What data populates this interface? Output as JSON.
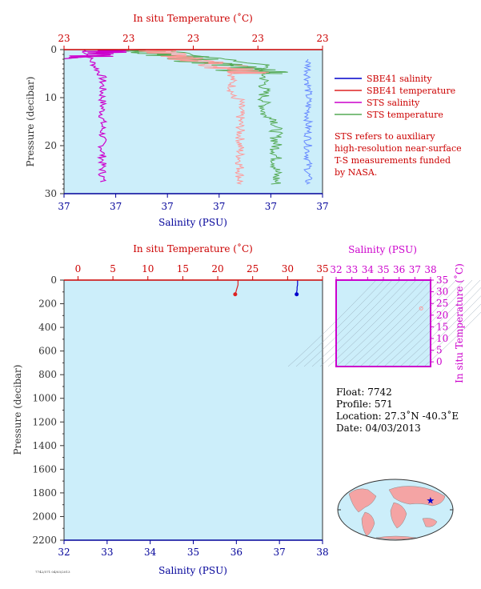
{
  "colors": {
    "plot_bg": "#cceefa",
    "temperature_axis": "#cc0000",
    "salinity_axis": "#000099",
    "pressure_axis": "#333333",
    "sbe41_salinity": "#0000cc",
    "sbe41_temperature": "#dd2222",
    "sts_salinity": "#cc00cc",
    "sts_temperature": "#55aa55",
    "sts_temperature_light": "#ff9999",
    "sbe41_salinity_light": "#6688ff",
    "ts_axis": "#cc00cc",
    "map_land": "#f4a4a4",
    "map_ocean": "#cceefa"
  },
  "chart_data": [
    {
      "id": "top-profile",
      "type": "line",
      "top_axis_title": "In situ Temperature (˚C)",
      "top_tick_labels": [
        "23",
        "23",
        "23",
        "23",
        "23"
      ],
      "bottom_axis_title": "Salinity (PSU)",
      "bottom_tick_labels": [
        "37",
        "37",
        "37",
        "37",
        "37",
        "37"
      ],
      "y_axis_title": "Pressure (decibar)",
      "y_tick_labels": [
        "0",
        "10",
        "20",
        "30"
      ],
      "ylim": [
        0,
        30
      ],
      "y_inverted": true,
      "grid": false,
      "legend_position": "right",
      "legend": [
        "SBE41 salinity",
        "SBE41 temperature",
        "STS salinity",
        "STS temperature"
      ],
      "note_lines": [
        "STS refers to auxiliary",
        "high-resolution near-surface",
        "T-S measurements funded",
        "by NASA."
      ]
    },
    {
      "id": "bottom-profile",
      "type": "line",
      "top_axis_title": "In situ Temperature (˚C)",
      "top_ticks": [
        0,
        5,
        10,
        15,
        20,
        25,
        30,
        35
      ],
      "xlim_temperature": [
        -2,
        35
      ],
      "bottom_axis_title": "Salinity (PSU)",
      "bottom_ticks": [
        32,
        33,
        34,
        35,
        36,
        37,
        38
      ],
      "xlim_salinity": [
        32,
        38
      ],
      "y_axis_title": "Pressure (decibar)",
      "y_ticks": [
        0,
        200,
        400,
        600,
        800,
        1000,
        1200,
        1400,
        1600,
        1800,
        2000,
        2200
      ],
      "ylim": [
        0,
        2200
      ],
      "y_inverted": true,
      "grid": false,
      "series": [
        {
          "name": "SBE41 temperature",
          "pressure": [
            0,
            5,
            10,
            20,
            40,
            60,
            80,
            100,
            120
          ],
          "values": [
            22.9,
            22.9,
            22.9,
            22.9,
            22.9,
            22.8,
            22.7,
            22.6,
            22.5
          ]
        },
        {
          "name": "SBE41 salinity",
          "pressure": [
            0,
            5,
            10,
            20,
            40,
            60,
            80,
            100,
            120
          ],
          "values": [
            37.42,
            37.42,
            37.42,
            37.42,
            37.42,
            37.41,
            37.41,
            37.4,
            37.4
          ]
        }
      ]
    },
    {
      "id": "ts-diagram",
      "type": "scatter",
      "top_axis_title": "Salinity (PSU)",
      "x_ticks": [
        32,
        33,
        34,
        35,
        36,
        37,
        38
      ],
      "xlim": [
        32,
        38
      ],
      "right_axis_title": "In situ Temperature (˚C)",
      "y_ticks": [
        0,
        5,
        10,
        15,
        20,
        25,
        30,
        35
      ],
      "ylim": [
        -2,
        35
      ],
      "grid": false,
      "points": [
        {
          "salinity": 37.4,
          "temperature": 22.9
        }
      ]
    }
  ],
  "float_info": {
    "float": "Float:  7742",
    "profile": "Profile:  571",
    "location": "Location:  27.3˚N  -40.3˚E",
    "date": "Date:  04/03/2013"
  },
  "footer_note": "7742/571 04/03/2013"
}
